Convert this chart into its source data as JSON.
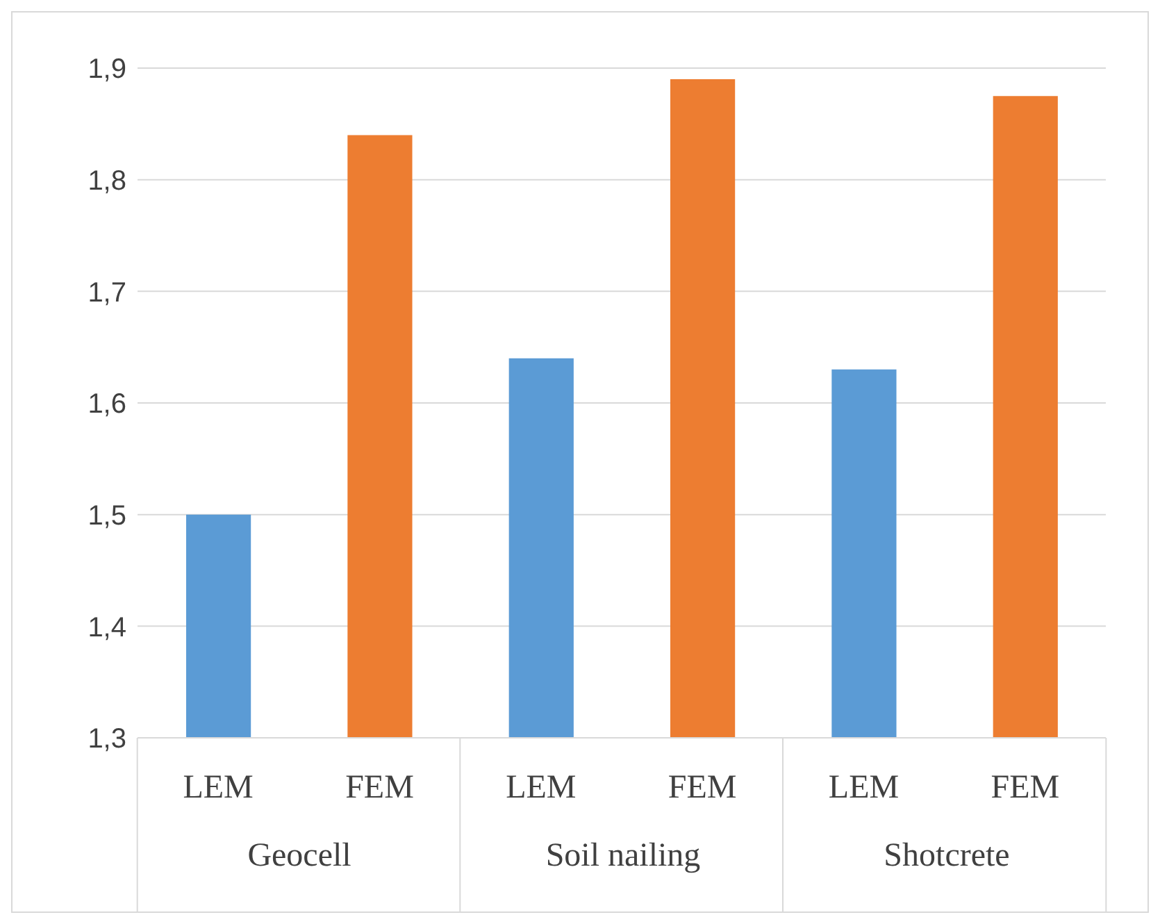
{
  "chart_data": {
    "type": "bar",
    "categories": [
      "LEM",
      "FEM",
      "LEM",
      "FEM",
      "LEM",
      "FEM"
    ],
    "values": [
      1.5,
      1.84,
      1.64,
      1.89,
      1.63,
      1.875
    ],
    "colors": [
      "#5b9bd5",
      "#ed7d31",
      "#5b9bd5",
      "#ed7d31",
      "#5b9bd5",
      "#ed7d31"
    ],
    "ylim": [
      1.3,
      1.9
    ],
    "yticks": [
      {
        "value": 1.3,
        "label": "1,3"
      },
      {
        "value": 1.4,
        "label": "1,4"
      },
      {
        "value": 1.5,
        "label": "1,5"
      },
      {
        "value": 1.6,
        "label": "1,6"
      },
      {
        "value": 1.7,
        "label": "1,7"
      },
      {
        "value": 1.8,
        "label": "1,8"
      },
      {
        "value": 1.9,
        "label": "1,9"
      }
    ],
    "grid": "y",
    "annotations": [
      "Geocell",
      "Soil nailing",
      "Shotcrete"
    ]
  }
}
